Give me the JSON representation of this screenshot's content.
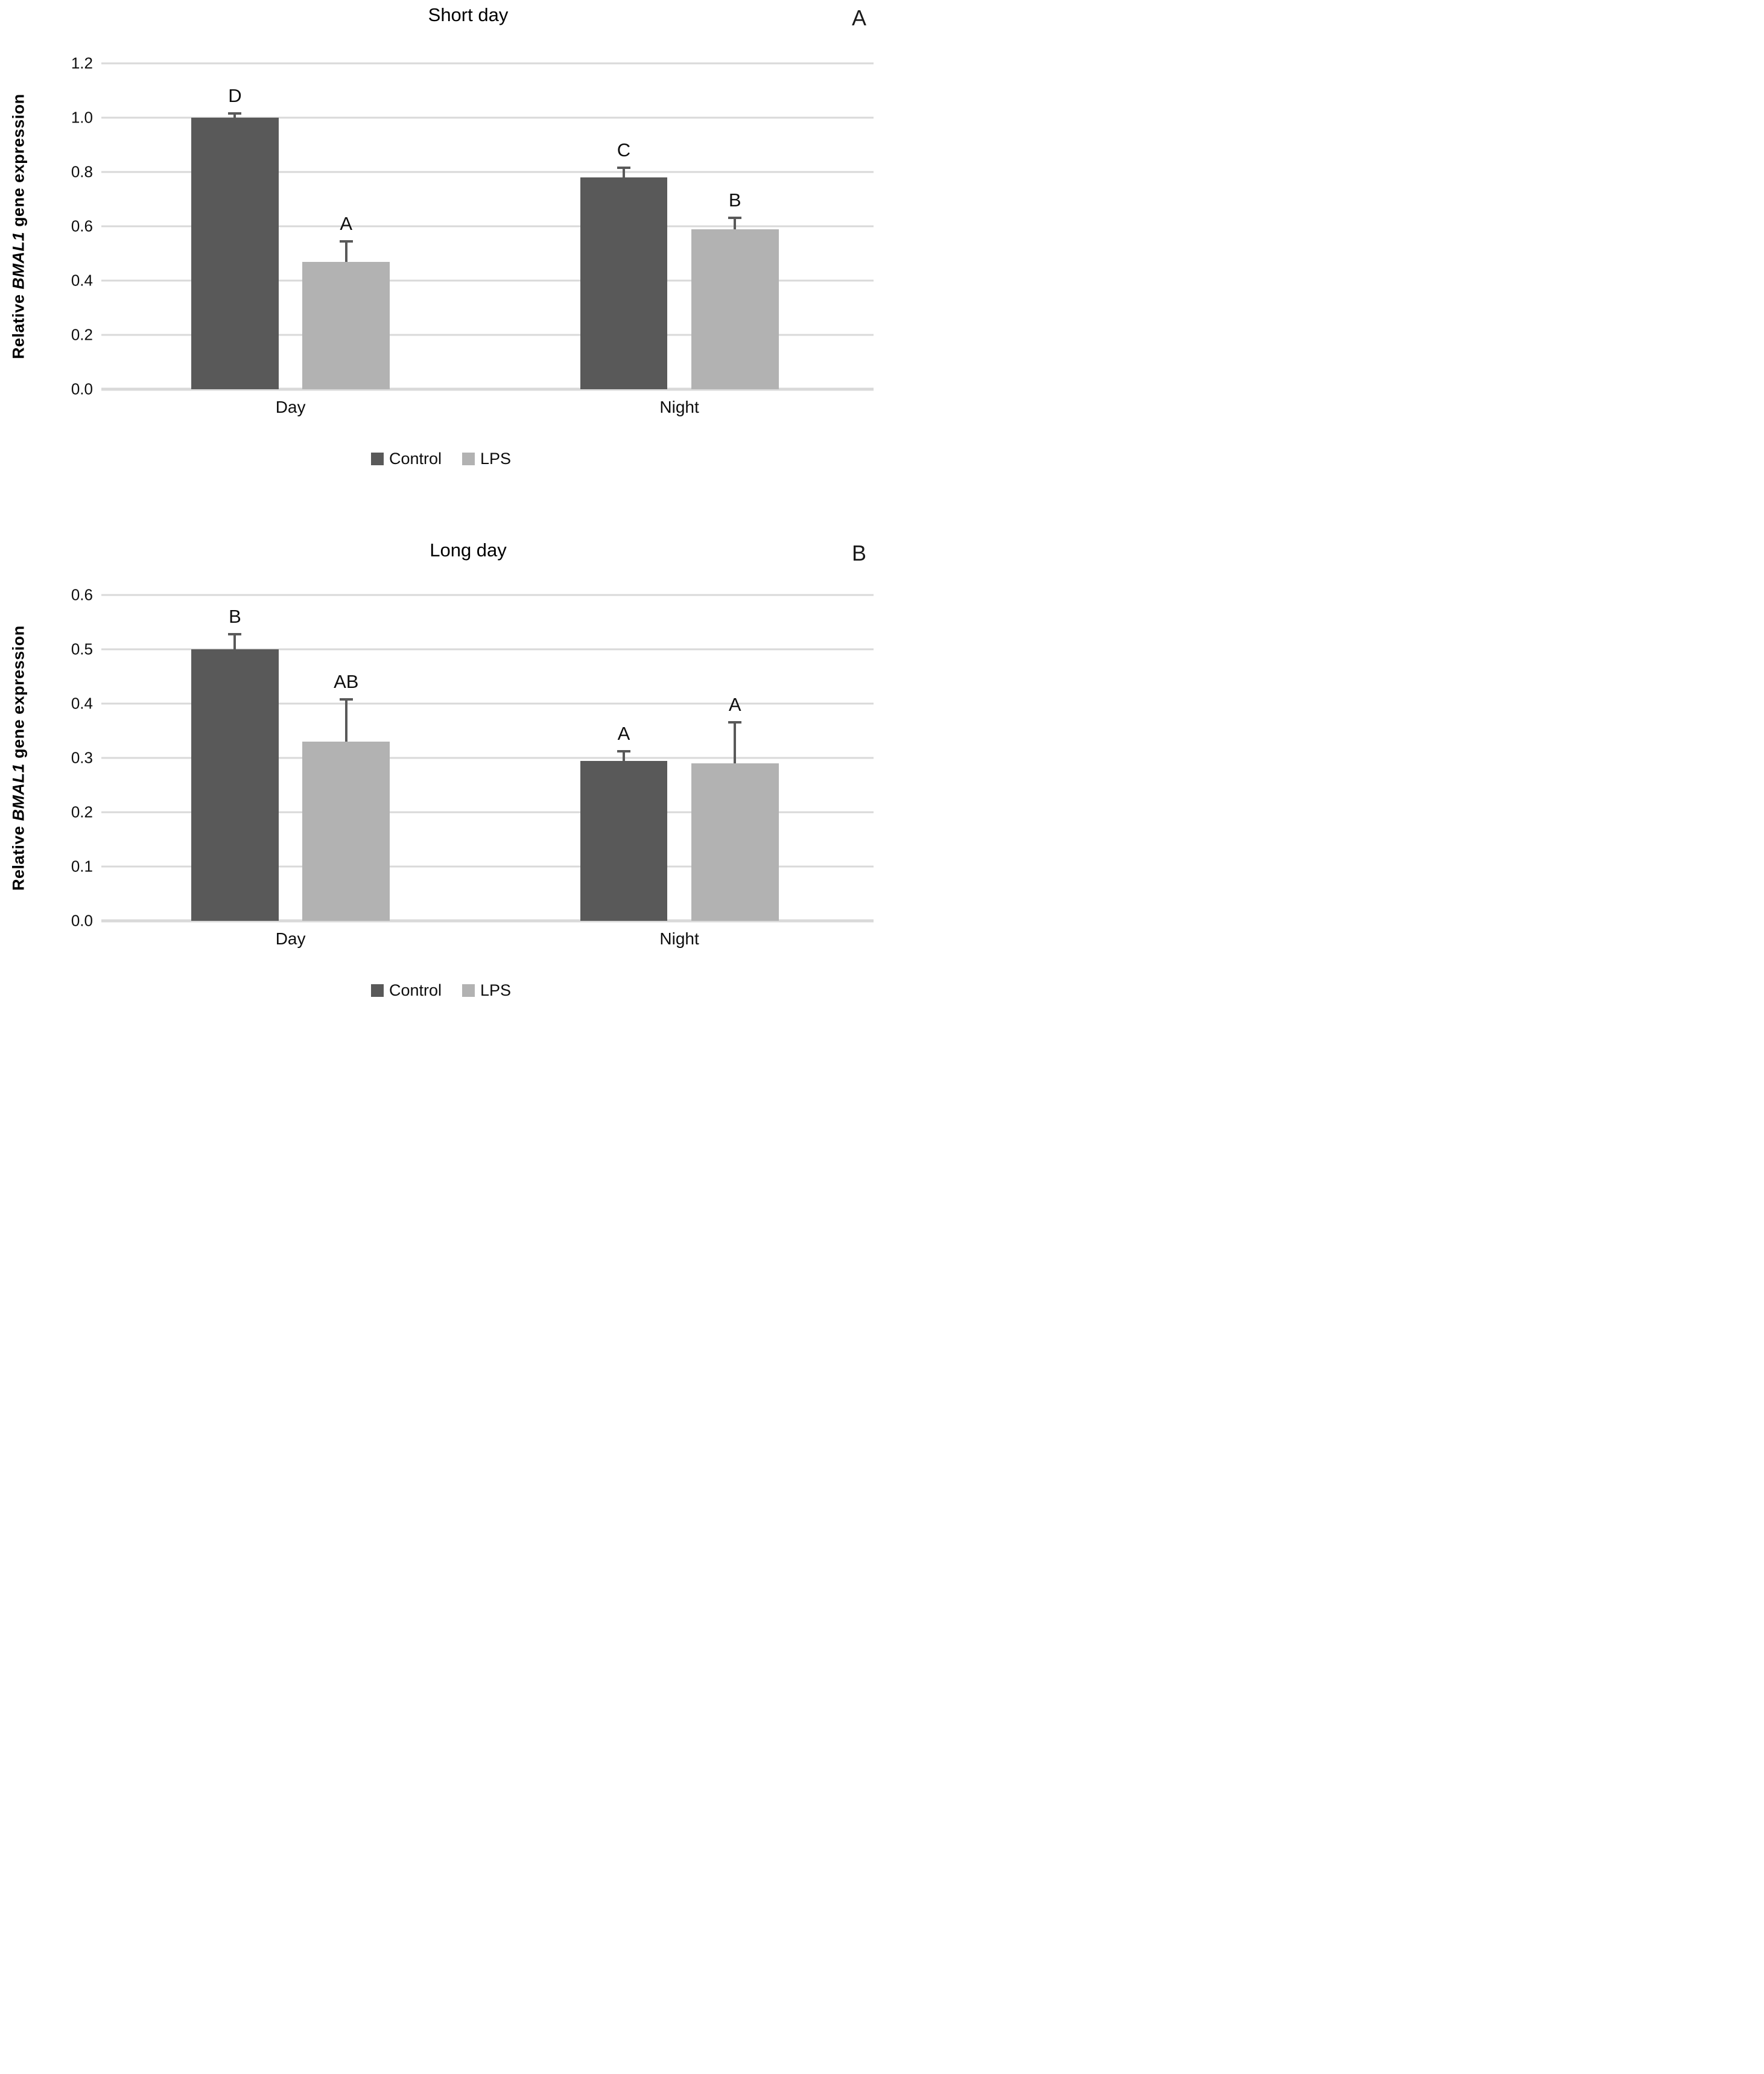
{
  "chart_data": [
    {
      "type": "bar",
      "panel_letter": "A",
      "title": "Short day",
      "ylabel_parts": {
        "prefix": "Relative ",
        "gene_italic": "BMAL1",
        "suffix": " gene expression"
      },
      "ylabel_text": "Relative BMAL1 gene expression",
      "categories": [
        "Day",
        "Night"
      ],
      "series": [
        {
          "name": "Control",
          "color": "#595959",
          "values": [
            1.0,
            0.78
          ],
          "errors_plus": [
            0.02,
            0.04
          ],
          "sig_letters": [
            "D",
            "C"
          ]
        },
        {
          "name": "LPS",
          "color": "#b2b2b2",
          "values": [
            0.47,
            0.59
          ],
          "errors_plus": [
            0.08,
            0.045
          ],
          "sig_letters": [
            "A",
            "B"
          ]
        }
      ],
      "ylim": [
        0,
        1.2
      ],
      "ytick_step": 0.2,
      "yticks": [
        "1.2",
        "1.0",
        "0.8",
        "0.6",
        "0.4",
        "0.2",
        "0.0"
      ],
      "grid": true,
      "legend_position": "bottom",
      "error_bar_color": "#595959",
      "gridline_color": "#d9d9d9"
    },
    {
      "type": "bar",
      "panel_letter": "B",
      "title": "Long day",
      "ylabel_parts": {
        "prefix": "Relative ",
        "gene_italic": "BMAL1",
        "suffix": " gene expression"
      },
      "ylabel_text": "Relative BMAL1 gene expression",
      "categories": [
        "Day",
        "Night"
      ],
      "series": [
        {
          "name": "Control",
          "color": "#595959",
          "values": [
            0.5,
            0.295
          ],
          "errors_plus": [
            0.03,
            0.02
          ],
          "sig_letters": [
            "B",
            "A"
          ]
        },
        {
          "name": "LPS",
          "color": "#b2b2b2",
          "values": [
            0.33,
            0.29
          ],
          "errors_plus": [
            0.08,
            0.078
          ],
          "sig_letters": [
            "AB",
            "A"
          ]
        }
      ],
      "ylim": [
        0,
        0.6
      ],
      "ytick_step": 0.1,
      "yticks": [
        "0.6",
        "0.5",
        "0.4",
        "0.3",
        "0.2",
        "0.1",
        "0.0"
      ],
      "grid": true,
      "legend_position": "bottom",
      "error_bar_color": "#595959",
      "gridline_color": "#d9d9d9"
    }
  ],
  "legend": {
    "items": [
      {
        "label": "Control",
        "color": "#595959"
      },
      {
        "label": "LPS",
        "color": "#b2b2b2"
      }
    ]
  }
}
